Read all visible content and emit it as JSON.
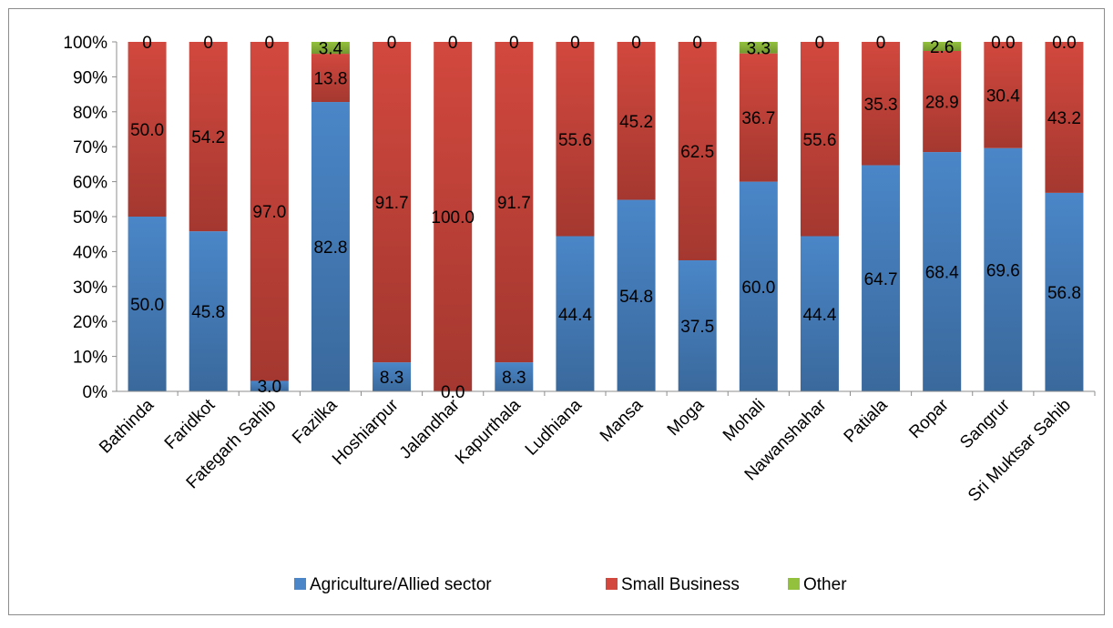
{
  "chart_data": {
    "type": "bar",
    "stacked": true,
    "percent": true,
    "categories": [
      "Bathinda",
      "Faridkot",
      "Fategarh Sahib",
      "Fazilka",
      "Hoshiarpur",
      "Jalandhar",
      "Kapurthala",
      "Ludhiana",
      "Mansa",
      "Moga",
      "Mohali",
      "Nawanshahar",
      "Patiala",
      "Ropar",
      "Sangrur",
      "Sri Muktsar Sahib"
    ],
    "series": [
      {
        "name": "Agriculture/Allied sector",
        "color": "#4a86c8",
        "values": [
          50.0,
          45.8,
          3.0,
          82.8,
          8.3,
          0.0,
          8.3,
          44.4,
          54.8,
          37.5,
          60.0,
          44.4,
          64.7,
          68.4,
          69.6,
          56.8
        ],
        "labels": [
          "50.0",
          "45.8",
          "3.0",
          "82.8",
          "8.3",
          "0.0",
          "8.3",
          "44.4",
          "54.8",
          "37.5",
          "60.0",
          "44.4",
          "64.7",
          "68.4",
          "69.6",
          "56.8"
        ]
      },
      {
        "name": "Small Business",
        "color": "#d2483e",
        "values": [
          50.0,
          54.2,
          97.0,
          13.8,
          91.7,
          100.0,
          91.7,
          55.6,
          45.2,
          62.5,
          36.7,
          55.6,
          35.3,
          28.9,
          30.4,
          43.2
        ],
        "labels": [
          "50.0",
          "54.2",
          "97.0",
          "13.8",
          "91.7",
          "100.0",
          "91.7",
          "55.6",
          "45.2",
          "62.5",
          "36.7",
          "55.6",
          "35.3",
          "28.9",
          "30.4",
          "43.2"
        ]
      },
      {
        "name": "Other",
        "color": "#93c13d",
        "values": [
          0,
          0,
          0,
          3.4,
          0,
          0,
          0,
          0,
          0,
          0,
          3.3,
          0,
          0,
          2.6,
          0.0,
          0.0
        ],
        "labels": [
          "0",
          "0",
          "0",
          "3.4",
          "0",
          "0",
          "0",
          "0",
          "0",
          "0",
          "3.3",
          "0",
          "0",
          "2.6",
          "0.0",
          "0.0"
        ]
      }
    ],
    "yticks": [
      "0%",
      "10%",
      "20%",
      "30%",
      "40%",
      "50%",
      "60%",
      "70%",
      "80%",
      "90%",
      "100%"
    ],
    "ylim": [
      0,
      100
    ],
    "grid": false,
    "legend": "bottom",
    "title": "",
    "xlabel": "",
    "ylabel": ""
  }
}
